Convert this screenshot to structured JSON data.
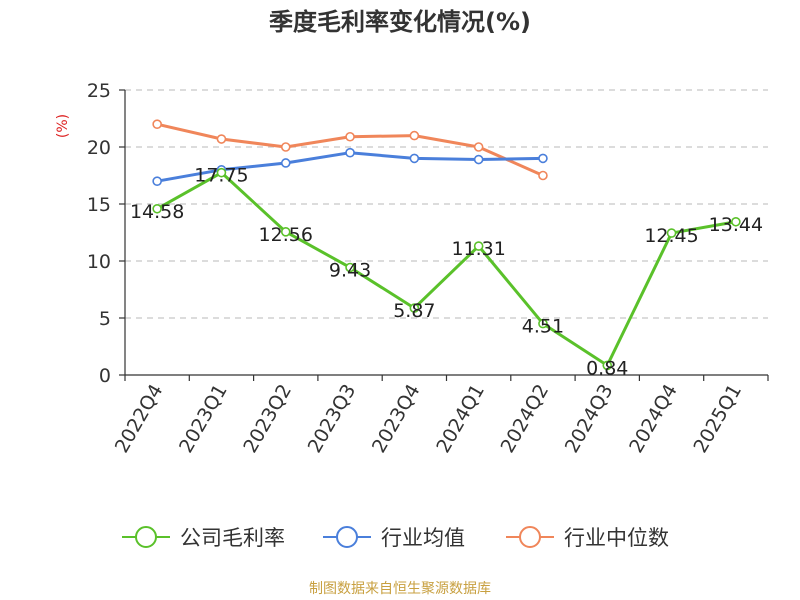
{
  "chart_data": {
    "type": "line",
    "title": "季度毛利率变化情况(%)",
    "ylabel": "(%)",
    "xlabel": "",
    "ylim": [
      0,
      25
    ],
    "yticks": [
      0,
      5,
      10,
      15,
      20,
      25
    ],
    "grid": true,
    "legend_position": "bottom",
    "categories": [
      "2022Q4",
      "2023Q1",
      "2023Q2",
      "2023Q3",
      "2023Q4",
      "2024Q1",
      "2024Q2",
      "2024Q3",
      "2024Q4",
      "2025Q1"
    ],
    "series": [
      {
        "name": "公司毛利率",
        "color": "#5ac12a",
        "show_labels": true,
        "values": [
          14.58,
          17.75,
          12.56,
          9.43,
          5.87,
          11.31,
          4.51,
          0.84,
          12.45,
          13.44
        ]
      },
      {
        "name": "行业均值",
        "color": "#4a7fdb",
        "show_labels": false,
        "values": [
          17.0,
          18.0,
          18.6,
          19.5,
          19.0,
          18.9,
          19.0,
          null,
          null,
          null
        ]
      },
      {
        "name": "行业中位数",
        "color": "#f0865a",
        "show_labels": false,
        "values": [
          22.0,
          20.7,
          20.0,
          20.9,
          21.0,
          20.0,
          17.5,
          null,
          null,
          null
        ]
      }
    ]
  },
  "footer": "制图数据来自恒生聚源数据库"
}
